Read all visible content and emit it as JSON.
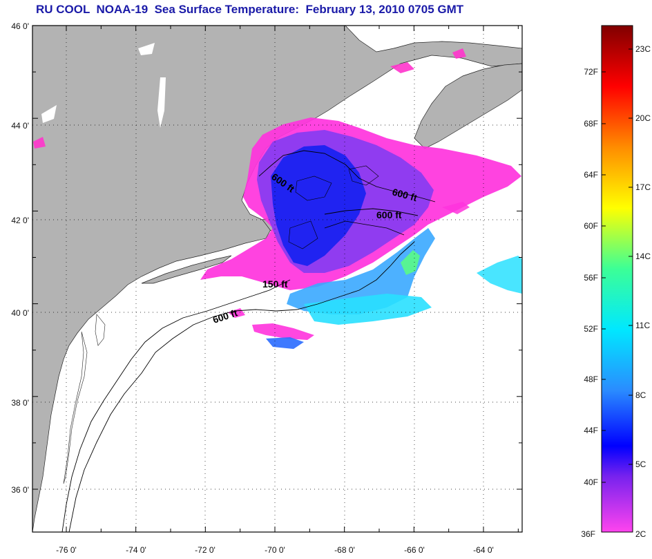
{
  "title": "RU COOL  NOAA-19  Sea Surface Temperature:  February 13, 2010 0705 GMT",
  "map": {
    "lat_labels": [
      "46 0'",
      "44 0'",
      "42 0'",
      "40 0'",
      "38 0'",
      "36 0'"
    ],
    "lon_labels": [
      "-76 0'",
      "-74 0'",
      "-72 0'",
      "-70 0'",
      "-68 0'",
      "-66 0'",
      "-64 0'"
    ],
    "depth_labels": [
      "600 ft",
      "600 ft",
      "600 ft",
      "150 ft",
      "600 ft"
    ],
    "colors": {
      "land": "#b3b3b3",
      "ocean": "#ffffff",
      "frame": "#000000"
    }
  },
  "colorbar": {
    "fahrenheit_labels": [
      "72F",
      "68F",
      "64F",
      "60F",
      "56F",
      "52F",
      "48F",
      "44F",
      "40F",
      "36F"
    ],
    "celsius_labels": [
      "23C",
      "20C",
      "17C",
      "14C",
      "11C",
      "8C",
      "5C",
      "2C"
    ],
    "gradient": [
      "#ff44ee",
      "#7722ee",
      "#0000ff",
      "#2a8cff",
      "#00e8ff",
      "#3cff96",
      "#ffff00",
      "#ff8c00",
      "#ff0000",
      "#800000"
    ]
  }
}
